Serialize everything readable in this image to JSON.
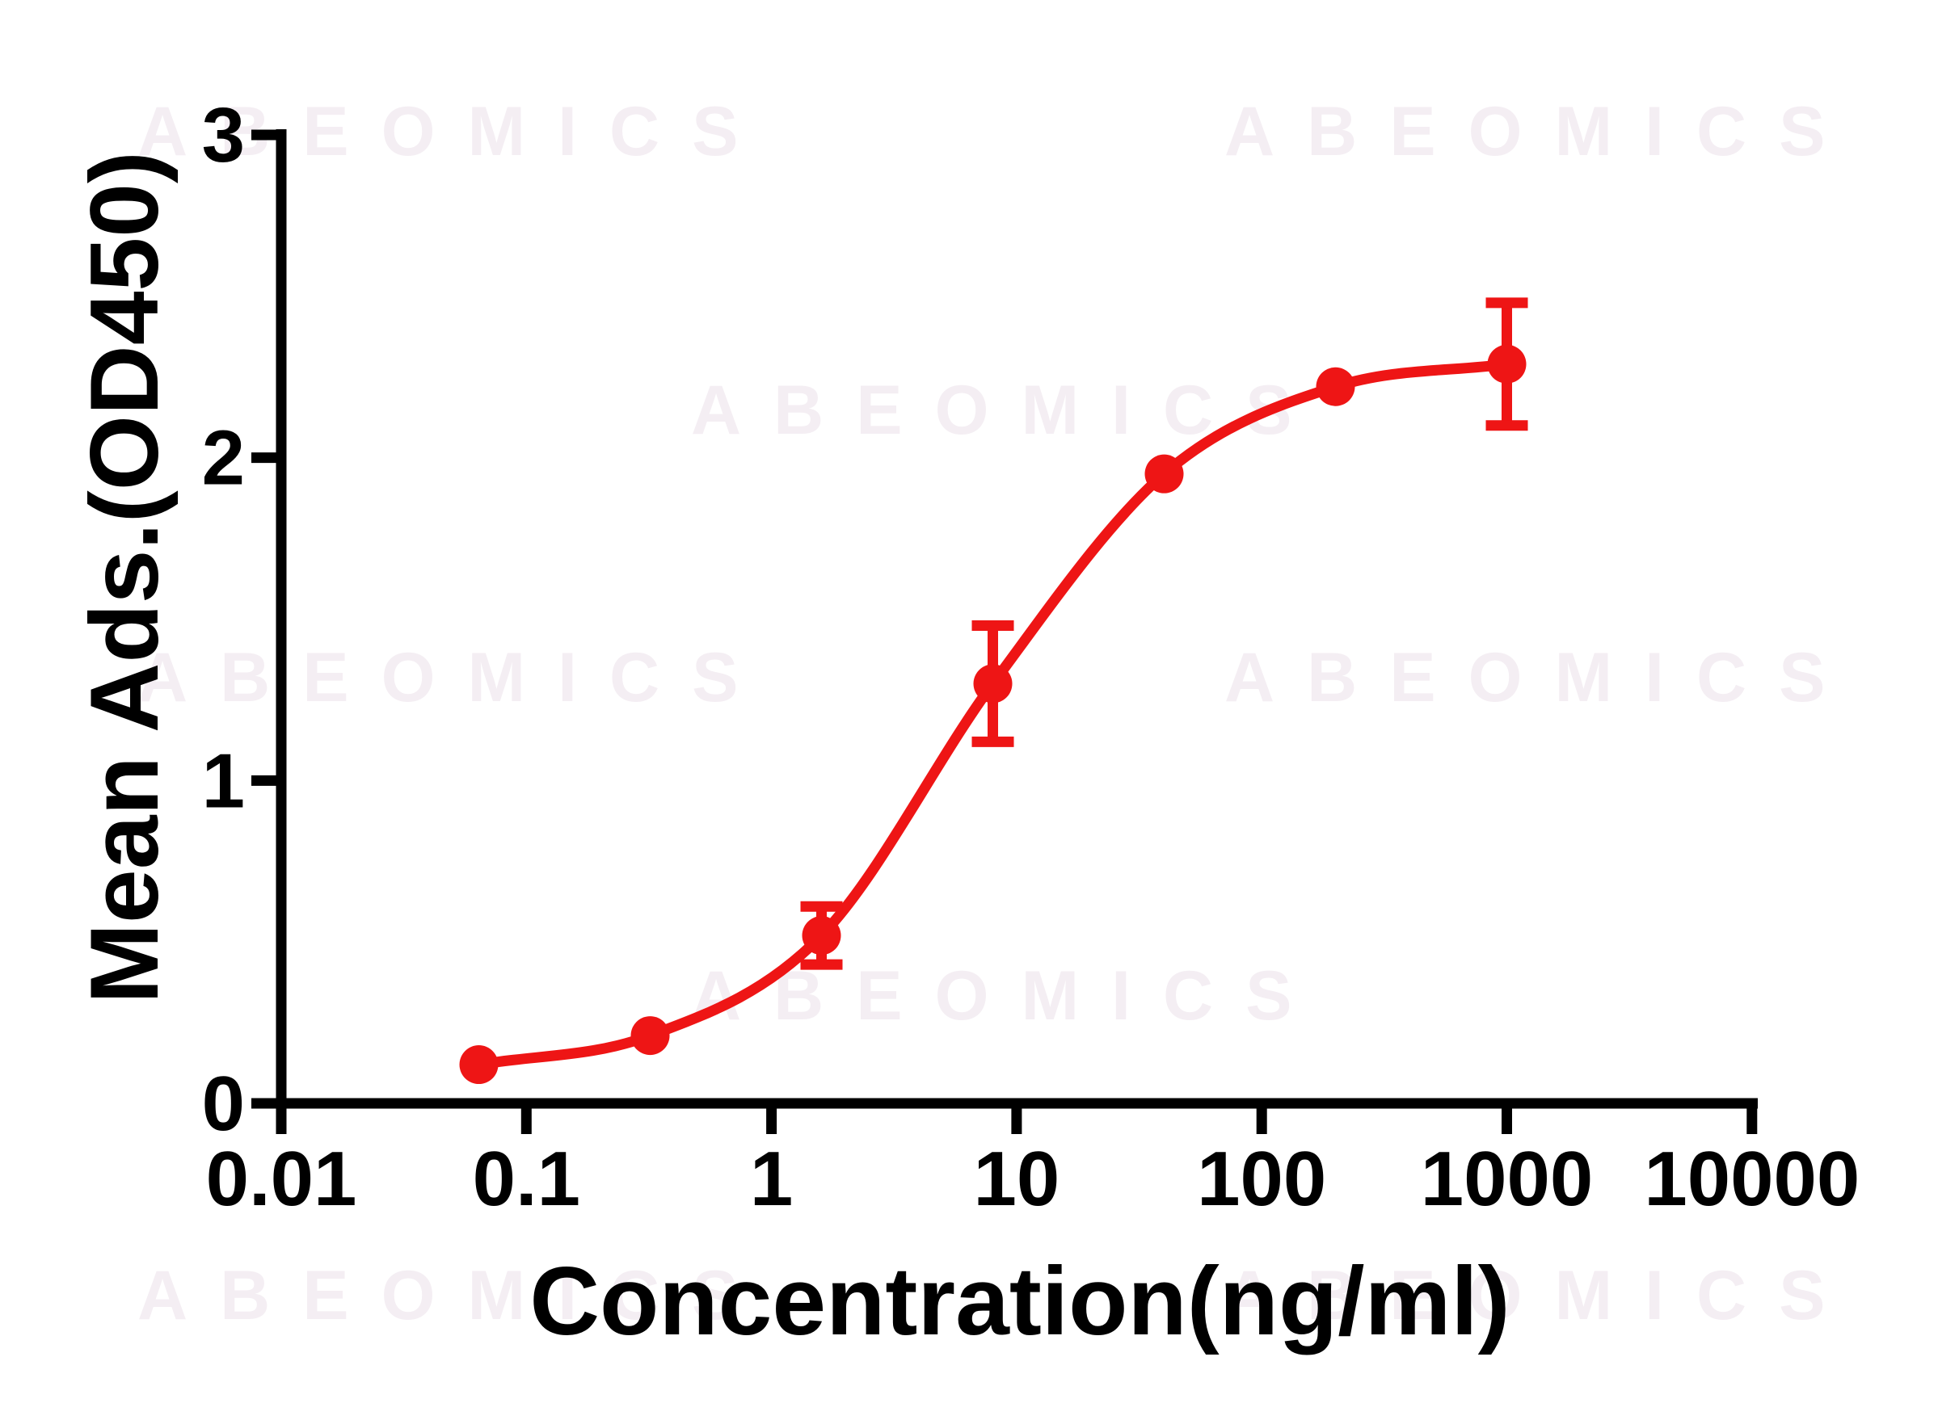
{
  "watermark": {
    "text": "ABEOMICS",
    "color": "#f4eef3"
  },
  "chart_data": {
    "type": "line",
    "title": "",
    "xlabel": "Concentration(ng/ml)",
    "ylabel": "Mean Ads.(OD450)",
    "x_scale": "log10",
    "xlim": [
      0.01,
      10000
    ],
    "ylim": [
      0,
      3
    ],
    "x_tick_labels": [
      "0.01",
      "0.1",
      "1",
      "10",
      "100",
      "1000",
      "10000"
    ],
    "x_tick_values": [
      0.01,
      0.1,
      1,
      10,
      100,
      1000,
      10000
    ],
    "y_ticks": [
      0,
      1,
      2,
      3
    ],
    "grid": false,
    "legend": "none",
    "background": "#ffffff",
    "axis_color": "#000000",
    "series": [
      {
        "color": "#ee1515",
        "marker": "circle",
        "points": [
          {
            "x": 0.064,
            "y": 0.12,
            "sem": null
          },
          {
            "x": 0.32,
            "y": 0.21,
            "sem": null
          },
          {
            "x": 1.6,
            "y": 0.52,
            "sem": 0.09
          },
          {
            "x": 8,
            "y": 1.3,
            "sem": 0.18
          },
          {
            "x": 40,
            "y": 1.95,
            "sem": null
          },
          {
            "x": 200,
            "y": 2.22,
            "sem": null
          },
          {
            "x": 1000,
            "y": 2.29,
            "sem": 0.19
          }
        ]
      }
    ]
  }
}
